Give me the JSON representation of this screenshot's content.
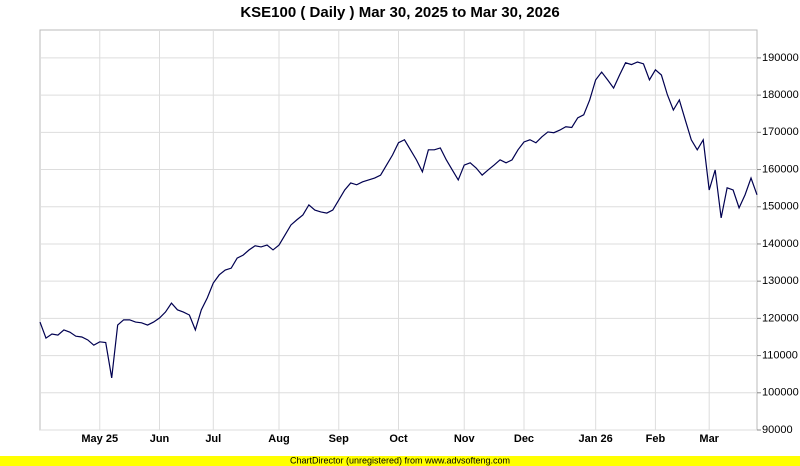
{
  "chart_data": {
    "type": "line",
    "title": "KSE100 ( Daily ) Mar 30, 2025 to Mar 30, 2026",
    "footer": "ChartDirector (unregistered) from www.advsofteng.com",
    "categories": [
      null,
      null,
      null,
      null,
      null,
      null,
      null,
      null,
      null,
      null,
      "May 25",
      null,
      null,
      null,
      null,
      null,
      null,
      null,
      null,
      null,
      "Jun",
      null,
      null,
      null,
      null,
      null,
      null,
      null,
      null,
      "Jul",
      null,
      null,
      null,
      null,
      null,
      null,
      null,
      null,
      null,
      null,
      "Aug",
      null,
      null,
      null,
      null,
      null,
      null,
      null,
      null,
      null,
      "Sep",
      null,
      null,
      null,
      null,
      null,
      null,
      null,
      null,
      null,
      "Oct",
      null,
      null,
      null,
      null,
      null,
      null,
      null,
      null,
      null,
      null,
      "Nov",
      null,
      null,
      null,
      null,
      null,
      null,
      null,
      null,
      null,
      "Dec",
      null,
      null,
      null,
      null,
      null,
      null,
      null,
      null,
      null,
      null,
      null,
      "Jan 26",
      null,
      null,
      null,
      null,
      null,
      null,
      null,
      null,
      null,
      "Feb",
      null,
      null,
      null,
      null,
      null,
      null,
      null,
      null,
      "Mar",
      null,
      null,
      null,
      null,
      null,
      null,
      null,
      null
    ],
    "series": [
      {
        "name": "KSE100",
        "color": "#000050",
        "values": [
          119000,
          114700,
          115800,
          115500,
          116900,
          116300,
          115200,
          115000,
          114200,
          112800,
          113700,
          113500,
          104000,
          118200,
          119600,
          119600,
          119000,
          118800,
          118200,
          119000,
          120100,
          121700,
          124100,
          122300,
          121700,
          120900,
          116900,
          122300,
          125500,
          129500,
          131700,
          133000,
          133500,
          136200,
          137000,
          138400,
          139500,
          139200,
          139700,
          138400,
          139700,
          142400,
          145100,
          146500,
          147800,
          150500,
          149100,
          148600,
          148300,
          149100,
          151800,
          154500,
          156400,
          155900,
          156700,
          157200,
          157700,
          158500,
          161200,
          163900,
          167200,
          168000,
          165300,
          162600,
          159400,
          165300,
          165300,
          165800,
          162600,
          159900,
          157200,
          161200,
          161800,
          160400,
          158500,
          159900,
          161200,
          162600,
          161800,
          162600,
          165300,
          167400,
          168000,
          167200,
          168800,
          170100,
          169900,
          170600,
          171500,
          171300,
          173900,
          174700,
          178700,
          184100,
          186200,
          184100,
          181900,
          185400,
          188700,
          188200,
          188900,
          188400,
          184100,
          186800,
          185400,
          180100,
          176000,
          178700,
          173300,
          168000,
          165300,
          168000,
          154500,
          159900,
          147000,
          155100,
          154500,
          149700,
          153200,
          157700,
          153200
        ]
      }
    ],
    "ylim": [
      90000,
      197500
    ],
    "yticks": [
      90000,
      100000,
      110000,
      120000,
      130000,
      140000,
      150000,
      160000,
      170000,
      180000,
      190000
    ],
    "grid": true
  }
}
